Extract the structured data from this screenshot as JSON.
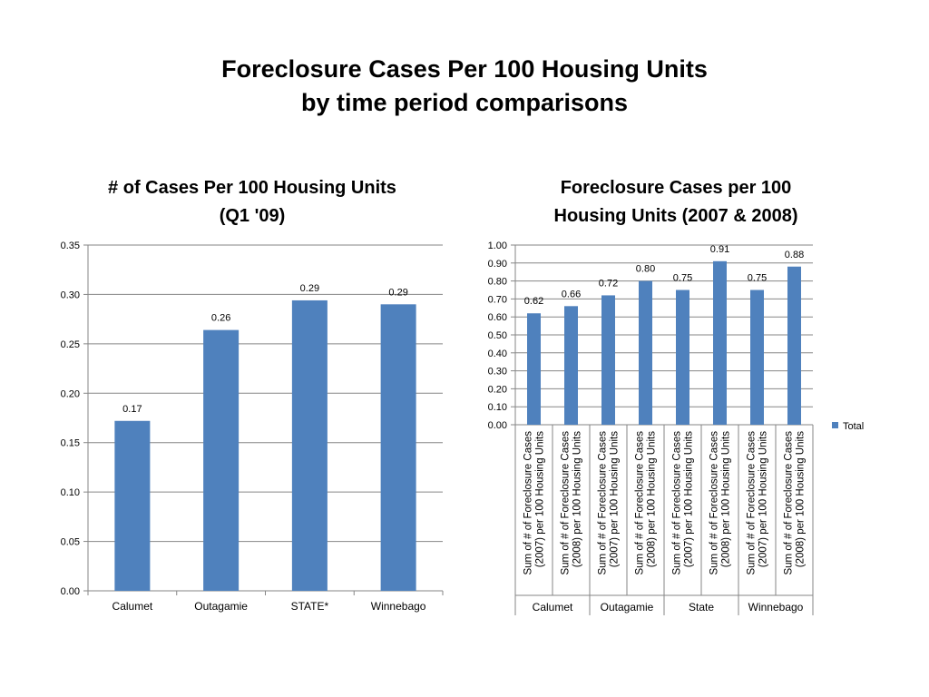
{
  "slide": {
    "title_line1": "Foreclosure Cases Per 100 Housing Units",
    "title_line2": "by time period comparisons"
  },
  "chart_data": [
    {
      "type": "bar",
      "title": "# of Cases Per 100 Housing Units",
      "subtitle": "(Q1 '09)",
      "categories": [
        "Calumet",
        "Outagamie",
        "STATE*",
        "Winnebago"
      ],
      "values": [
        0.172,
        0.264,
        0.294,
        0.29
      ],
      "data_labels": [
        "0.17",
        "0.26",
        "0.29",
        "0.29"
      ],
      "ylim": [
        0,
        0.35
      ],
      "yticks": [
        "0.00",
        "0.05",
        "0.10",
        "0.15",
        "0.20",
        "0.25",
        "0.30",
        "0.35"
      ],
      "grid": true,
      "legend": "none",
      "color": "#4F81BD"
    },
    {
      "type": "bar",
      "title": "Foreclosure Cases per 100",
      "subtitle": "Housing Units (2007 & 2008)",
      "groups": [
        "Calumet",
        "Outagamie",
        "State",
        "Winnebago"
      ],
      "sub_categories": [
        [
          "Sum of # of Foreclosure Cases",
          "(2007) per 100 Housing Units"
        ],
        [
          "Sum of # of Foreclosure Cases",
          "(2008) per 100 Housing Units"
        ]
      ],
      "series": [
        {
          "name": "Total",
          "values": [
            0.62,
            0.66,
            0.72,
            0.8,
            0.75,
            0.91,
            0.75,
            0.88
          ]
        }
      ],
      "data_labels": [
        "0.62",
        "0.66",
        "0.72",
        "0.80",
        "0.75",
        "0.91",
        "0.75",
        "0.88"
      ],
      "ylim": [
        0,
        1.0
      ],
      "yticks": [
        "0.00",
        "0.10",
        "0.20",
        "0.30",
        "0.40",
        "0.50",
        "0.60",
        "0.70",
        "0.80",
        "0.90",
        "1.00"
      ],
      "grid": true,
      "legend": "right",
      "color": "#4F81BD"
    }
  ]
}
